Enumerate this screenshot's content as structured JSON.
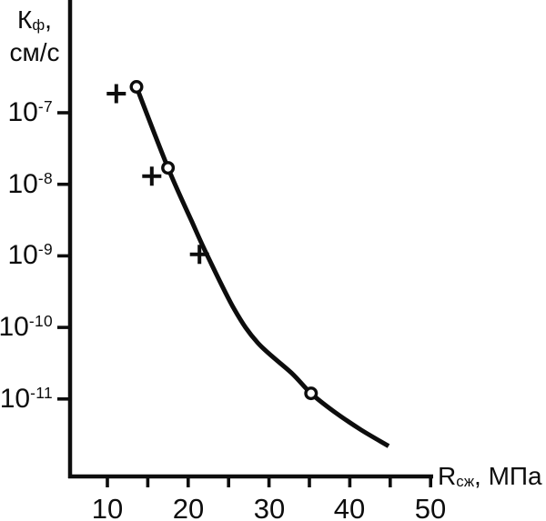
{
  "figure": {
    "background_color": "#ffffff",
    "ink_color": "#0d0d0d"
  },
  "chart_data": {
    "type": "scatter",
    "title": "",
    "xlabel": "Rсж, МПа",
    "ylabel": "Кф, см/с",
    "x_axis": {
      "symbol": "R",
      "symbol_subscript": "сж",
      "suffix": ", МПа",
      "scale": "linear",
      "tick_values": [
        10,
        15,
        20,
        25,
        30,
        35,
        40,
        45,
        50
      ],
      "labeled_tick_values": [
        10,
        20,
        30,
        40,
        50
      ],
      "tick_labels": [
        "10",
        "20",
        "30",
        "40",
        "50"
      ]
    },
    "y_axis": {
      "symbol": "К",
      "symbol_subscript": "ф",
      "symbol_suffix": ",",
      "units": "см/с",
      "scale": "log",
      "tick_values": [
        1e-07,
        1e-08,
        1e-09,
        1e-10,
        1e-11
      ],
      "tick_labels": [
        {
          "base": "10",
          "exponent": "-7"
        },
        {
          "base": "10",
          "exponent": "-8"
        },
        {
          "base": "10",
          "exponent": "-9"
        },
        {
          "base": "10",
          "exponent": "-10"
        },
        {
          "base": "10",
          "exponent": "-11"
        }
      ]
    },
    "series": [
      {
        "name": "circle-points",
        "marker": "circle",
        "points": [
          {
            "x": 13.6,
            "y": 2.3e-07
          },
          {
            "x": 17.5,
            "y": 1.7e-08
          },
          {
            "x": 35.2,
            "y": 1.2e-11
          }
        ]
      },
      {
        "name": "plus-points",
        "marker": "plus",
        "points": [
          {
            "x": 11.1,
            "y": 1.85e-07
          },
          {
            "x": 15.5,
            "y": 1.3e-08
          },
          {
            "x": 21.4,
            "y": 1.05e-09
          }
        ]
      }
    ],
    "fit_curve": [
      [
        13.6,
        2.3e-07
      ],
      [
        17.5,
        1.7e-08
      ],
      [
        20.4,
        3.1e-09
      ],
      [
        22.3,
        1.05e-09
      ],
      [
        25.7,
        1.8e-10
      ],
      [
        28.6,
        6.1e-11
      ],
      [
        32.8,
        2.3e-11
      ],
      [
        35.2,
        1.2e-11
      ],
      [
        38.1,
        6.6e-12
      ],
      [
        41.4,
        3.7e-12
      ],
      [
        44.8,
        2.2e-12
      ]
    ]
  }
}
